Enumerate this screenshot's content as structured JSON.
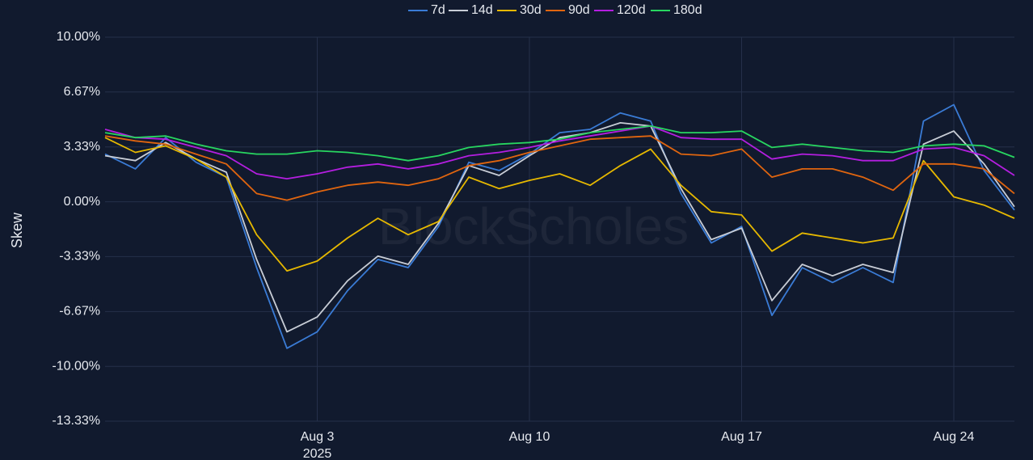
{
  "chart_data": {
    "type": "line",
    "y_label": "Skew",
    "watermark": "BlockScholes",
    "x": [
      "2025-07-27",
      "2025-07-28",
      "2025-07-29",
      "2025-07-30",
      "2025-07-31",
      "2025-08-01",
      "2025-08-02",
      "2025-08-03",
      "2025-08-04",
      "2025-08-05",
      "2025-08-06",
      "2025-08-07",
      "2025-08-08",
      "2025-08-09",
      "2025-08-10",
      "2025-08-11",
      "2025-08-12",
      "2025-08-13",
      "2025-08-14",
      "2025-08-15",
      "2025-08-16",
      "2025-08-17",
      "2025-08-18",
      "2025-08-19",
      "2025-08-20",
      "2025-08-21",
      "2025-08-22",
      "2025-08-23",
      "2025-08-24",
      "2025-08-25",
      "2025-08-26"
    ],
    "xlim": [
      "2025-07-27",
      "2025-08-26"
    ],
    "xticks": [
      {
        "value": "2025-08-03",
        "label": "Aug 3",
        "sublabel": "2025"
      },
      {
        "value": "2025-08-10",
        "label": "Aug 10"
      },
      {
        "value": "2025-08-17",
        "label": "Aug 17"
      },
      {
        "value": "2025-08-24",
        "label": "Aug 24"
      }
    ],
    "ylim": [
      -13.33,
      10
    ],
    "yticks": [
      {
        "value": 10,
        "label": "10.00%"
      },
      {
        "value": 6.67,
        "label": "6.67%"
      },
      {
        "value": 3.33,
        "label": "3.33%"
      },
      {
        "value": 0,
        "label": "0.00%"
      },
      {
        "value": -3.33,
        "label": "-3.33%"
      },
      {
        "value": -6.67,
        "label": "-6.67%"
      },
      {
        "value": -10,
        "label": "-10.00%"
      },
      {
        "value": -13.33,
        "label": "-13.33%"
      }
    ],
    "grid": true,
    "legend": "top",
    "series": [
      {
        "name": "7d",
        "color": "#3a7bd5",
        "values": [
          2.9,
          2.0,
          3.9,
          2.4,
          1.5,
          -4.0,
          -8.9,
          -7.9,
          -5.4,
          -3.5,
          -4.0,
          -1.5,
          2.4,
          1.9,
          2.9,
          4.2,
          4.4,
          5.4,
          4.9,
          0.5,
          -2.5,
          -1.5,
          -6.9,
          -4.0,
          -4.9,
          -4.0,
          -4.9,
          4.9,
          5.9,
          1.9,
          -0.5
        ]
      },
      {
        "name": "14d",
        "color": "#c8cdd6",
        "values": [
          2.8,
          2.5,
          3.6,
          2.6,
          1.8,
          -3.5,
          -7.9,
          -7.0,
          -4.8,
          -3.3,
          -3.8,
          -1.3,
          2.2,
          1.6,
          2.8,
          3.9,
          4.2,
          4.8,
          4.6,
          0.8,
          -2.3,
          -1.6,
          -6.0,
          -3.8,
          -4.5,
          -3.8,
          -4.3,
          3.5,
          4.3,
          2.3,
          -0.3
        ]
      },
      {
        "name": "30d",
        "color": "#e6b800",
        "values": [
          3.9,
          3.0,
          3.4,
          2.6,
          1.5,
          -2.0,
          -4.2,
          -3.6,
          -2.2,
          -1.0,
          -2.0,
          -1.2,
          1.5,
          0.8,
          1.3,
          1.7,
          1.0,
          2.2,
          3.2,
          1.0,
          -0.6,
          -0.8,
          -3.0,
          -1.9,
          -2.2,
          -2.5,
          -2.2,
          2.5,
          0.3,
          -0.2,
          -1.0
        ]
      },
      {
        "name": "90d",
        "color": "#e0650f",
        "values": [
          4.0,
          3.7,
          3.5,
          2.9,
          2.3,
          0.5,
          0.1,
          0.6,
          1.0,
          1.2,
          1.0,
          1.4,
          2.2,
          2.5,
          3.0,
          3.4,
          3.8,
          3.9,
          4.0,
          2.9,
          2.8,
          3.2,
          1.5,
          2.0,
          2.0,
          1.5,
          0.7,
          2.3,
          2.3,
          2.0,
          0.5
        ]
      },
      {
        "name": "120d",
        "color": "#b41ee0",
        "values": [
          4.4,
          3.9,
          3.8,
          3.3,
          2.8,
          1.7,
          1.4,
          1.7,
          2.1,
          2.3,
          2.0,
          2.3,
          2.8,
          3.0,
          3.3,
          3.7,
          4.0,
          4.3,
          4.6,
          3.9,
          3.8,
          3.8,
          2.6,
          2.9,
          2.8,
          2.5,
          2.5,
          3.2,
          3.3,
          2.8,
          1.6
        ]
      },
      {
        "name": "180d",
        "color": "#28d660",
        "values": [
          4.2,
          3.9,
          4.0,
          3.5,
          3.1,
          2.9,
          2.9,
          3.1,
          3.0,
          2.8,
          2.5,
          2.8,
          3.3,
          3.5,
          3.6,
          3.8,
          4.2,
          4.4,
          4.6,
          4.2,
          4.2,
          4.3,
          3.3,
          3.5,
          3.3,
          3.1,
          3.0,
          3.4,
          3.5,
          3.4,
          2.7
        ]
      }
    ]
  }
}
